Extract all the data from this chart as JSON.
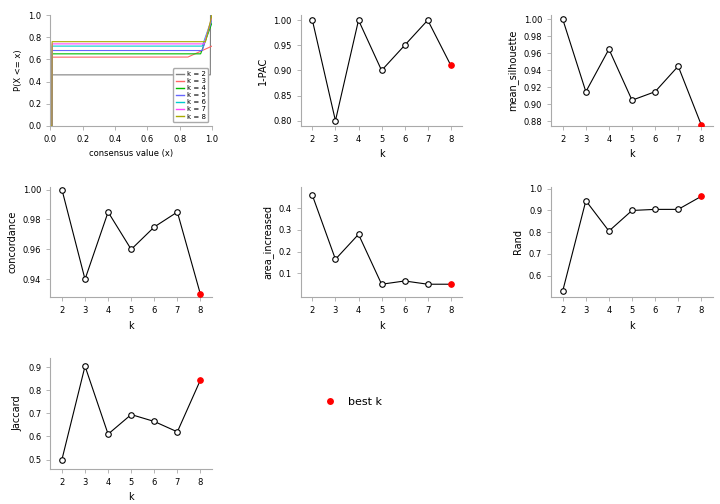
{
  "k_values": [
    2,
    3,
    4,
    5,
    6,
    7,
    8
  ],
  "pac_values": [
    1.0,
    0.8,
    1.0,
    0.9,
    0.95,
    1.0,
    0.91
  ],
  "pac_best_k": 8,
  "mean_sil_values": [
    1.0,
    0.915,
    0.965,
    0.905,
    0.915,
    0.945,
    0.876
  ],
  "mean_sil_best_k": 8,
  "concordance_values": [
    1.0,
    0.94,
    0.985,
    0.96,
    0.975,
    0.985,
    0.93
  ],
  "concordance_best_k": 8,
  "area_values": [
    0.46,
    0.165,
    0.28,
    0.05,
    0.065,
    0.05,
    0.05
  ],
  "area_best_k": 8,
  "rand_values": [
    0.53,
    0.945,
    0.805,
    0.9,
    0.905,
    0.905,
    0.965
  ],
  "rand_best_k": 8,
  "jaccard_values": [
    0.5,
    0.905,
    0.61,
    0.695,
    0.665,
    0.62,
    0.845
  ],
  "jaccard_best_k": 8,
  "ecdf_colors": [
    "#808080",
    "#FF6666",
    "#00BB00",
    "#6666FF",
    "#00CCCC",
    "#FF44FF",
    "#AAAA00"
  ],
  "ecdf_labels": [
    "k = 2",
    "k = 3",
    "k = 4",
    "k = 5",
    "k = 6",
    "k = 7",
    "k = 8"
  ],
  "best_k_color": "#FF0000",
  "line_color": "#000000",
  "bg_color": "#FFFFFF",
  "panel_bg": "#FFFFFF",
  "axis_color": "#AAAAAA"
}
